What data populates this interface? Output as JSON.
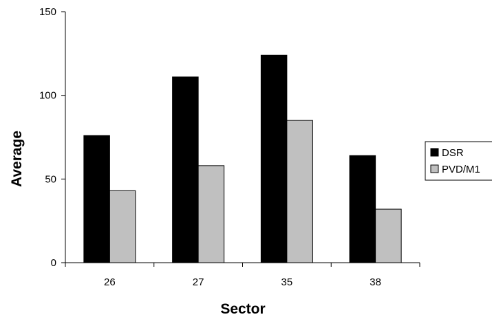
{
  "chart_data": {
    "type": "bar",
    "title": "",
    "xlabel": "Sector",
    "ylabel": "Average",
    "categories": [
      "26",
      "27",
      "35",
      "38"
    ],
    "series": [
      {
        "name": "DSR",
        "values": [
          76,
          111,
          124,
          64
        ],
        "color": "#000000"
      },
      {
        "name": "PVD/M1",
        "values": [
          43,
          58,
          85,
          32
        ],
        "color": "#c0c0c0"
      }
    ],
    "ylim": [
      0,
      150
    ],
    "yticks": [
      0,
      50,
      100,
      150
    ],
    "grid": false,
    "legend": "right"
  }
}
